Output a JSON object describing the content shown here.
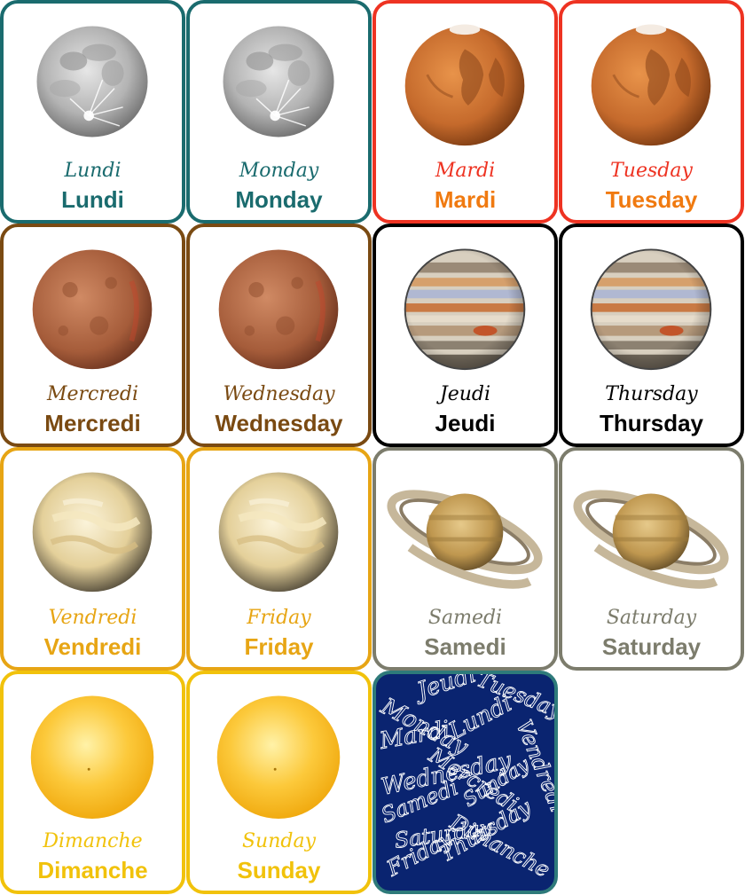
{
  "colors": {
    "moon": "#1a6b6e",
    "mars": "#ee3322",
    "mars_text": "#f07a10",
    "mercury": "#7a4a12",
    "jupiter": "#000000",
    "venus": "#e7a514",
    "saturn": "#7c7c6c",
    "sun": "#f1c20b",
    "back_border": "#2e7a7a",
    "back_fill": "#0a2470"
  },
  "cards": [
    {
      "planet": "moon",
      "script": "Lundi",
      "bold": "Lundi"
    },
    {
      "planet": "moon",
      "script": "Monday",
      "bold": "Monday"
    },
    {
      "planet": "mars",
      "script": "Mardi",
      "bold": "Mardi"
    },
    {
      "planet": "mars",
      "script": "Tuesday",
      "bold": "Tuesday"
    },
    {
      "planet": "mercury",
      "script": "Mercredi",
      "bold": "Mercredi"
    },
    {
      "planet": "mercury",
      "script": "Wednesday",
      "bold": "Wednesday"
    },
    {
      "planet": "jupiter",
      "script": "Jeudi",
      "bold": "Jeudi"
    },
    {
      "planet": "jupiter",
      "script": "Thursday",
      "bold": "Thursday"
    },
    {
      "planet": "venus",
      "script": "Vendredi",
      "bold": "Vendredi"
    },
    {
      "planet": "venus",
      "script": "Friday",
      "bold": "Friday"
    },
    {
      "planet": "saturn",
      "script": "Samedi",
      "bold": "Samedi"
    },
    {
      "planet": "saturn",
      "script": "Saturday",
      "bold": "Saturday"
    },
    {
      "planet": "sun",
      "script": "Dimanche",
      "bold": "Dimanche"
    },
    {
      "planet": "sun",
      "script": "Sunday",
      "bold": "Sunday"
    }
  ],
  "card_back": {
    "words": [
      "Monday",
      "Jeudi",
      "Tuesday",
      "Mardi",
      "Lundi",
      "Vendredi",
      "Mercredi",
      "Wednesday",
      "Samedi",
      "Dimanche",
      "Sunday",
      "Saturday",
      "Friday",
      "Thursday"
    ]
  }
}
